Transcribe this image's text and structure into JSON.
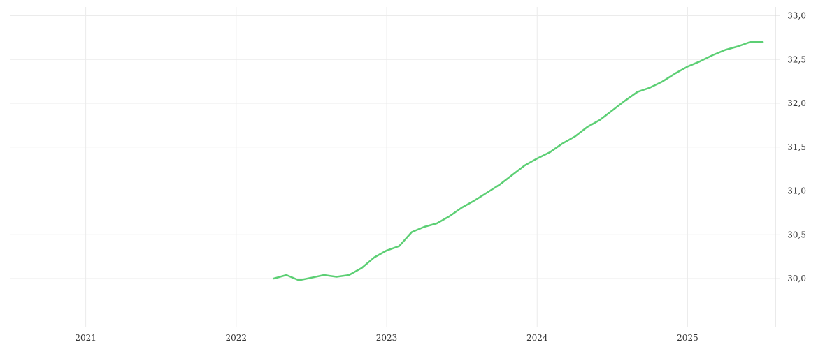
{
  "chart_data": {
    "type": "line",
    "title": "",
    "xlabel": "",
    "ylabel": "",
    "x_ticks": [
      "2021",
      "2022",
      "2023",
      "2024",
      "2025"
    ],
    "y_ticks": [
      "30,0",
      "30,5",
      "31,0",
      "31,5",
      "32,0",
      "32,5",
      "33,0"
    ],
    "xlim": [
      "2020-07",
      "2025-08"
    ],
    "ylim": [
      29.53,
      33.1
    ],
    "grid": true,
    "y_axis_position": "right",
    "series": [
      {
        "color": "#5ccf74",
        "x": [
          "2022-04",
          "2022-05",
          "2022-06",
          "2022-07",
          "2022-08",
          "2022-09",
          "2022-10",
          "2022-11",
          "2022-12",
          "2023-01",
          "2023-02",
          "2023-03",
          "2023-04",
          "2023-05",
          "2023-06",
          "2023-07",
          "2023-08",
          "2023-09",
          "2023-10",
          "2023-11",
          "2023-12",
          "2024-01",
          "2024-02",
          "2024-03",
          "2024-04",
          "2024-05",
          "2024-06",
          "2024-07",
          "2024-08",
          "2024-09",
          "2024-10",
          "2024-11",
          "2024-12",
          "2025-01",
          "2025-02",
          "2025-03",
          "2025-04",
          "2025-05",
          "2025-06",
          "2025-07"
        ],
        "values": [
          30.0,
          30.04,
          29.98,
          30.01,
          30.04,
          30.02,
          30.04,
          30.12,
          30.24,
          30.32,
          30.37,
          30.53,
          30.59,
          30.63,
          30.71,
          30.81,
          30.89,
          30.98,
          31.07,
          31.18,
          31.29,
          31.37,
          31.44,
          31.54,
          31.62,
          31.73,
          31.81,
          31.92,
          32.03,
          32.13,
          32.18,
          32.25,
          32.34,
          32.42,
          32.48,
          32.55,
          32.61,
          32.65,
          32.7,
          32.7
        ]
      }
    ]
  }
}
